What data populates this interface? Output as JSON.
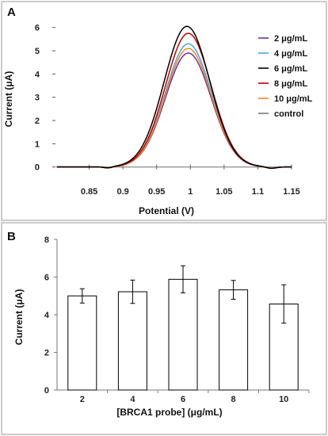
{
  "chart_data": [
    {
      "type": "line",
      "panel_label": "A",
      "xlabel": "Potential (V)",
      "ylabel": "Current (μA)",
      "xlim": [
        0.8,
        1.15
      ],
      "ylim": [
        -1,
        6.5
      ],
      "xticks": [
        "0.85",
        "0.9",
        "0.95",
        "1",
        "1.05",
        "1.1",
        "1.15"
      ],
      "yticks": [
        "0",
        "1",
        "2",
        "3",
        "4",
        "5",
        "6"
      ],
      "legend_position": "right",
      "peak_potential": 0.997,
      "series": [
        {
          "name": "2 μg/mL",
          "color": "#7030a0",
          "peak": 4.9
        },
        {
          "name": "4 μg/mL",
          "color": "#4ba3dd",
          "peak": 5.3
        },
        {
          "name": "6 μg/mL",
          "color": "#000000",
          "peak": 6.05
        },
        {
          "name": "8 μg/mL",
          "color": "#c00000",
          "peak": 5.75
        },
        {
          "name": "10 μg/mL",
          "color": "#f08a24",
          "peak": 5.1
        },
        {
          "name": "control",
          "color": "#7f7f7f",
          "peak": 0
        }
      ]
    },
    {
      "type": "bar",
      "panel_label": "B",
      "xlabel": "[BRCA1 probe] (μg/mL)",
      "ylabel": "Current (μA)",
      "categories": [
        "2",
        "4",
        "6",
        "8",
        "10"
      ],
      "values": [
        5.0,
        5.22,
        5.88,
        5.32,
        4.57
      ],
      "errors": [
        0.38,
        0.62,
        0.72,
        0.5,
        1.02
      ],
      "ylim": [
        0,
        8
      ],
      "yticks": [
        "0",
        "2",
        "4",
        "6",
        "8"
      ]
    }
  ]
}
